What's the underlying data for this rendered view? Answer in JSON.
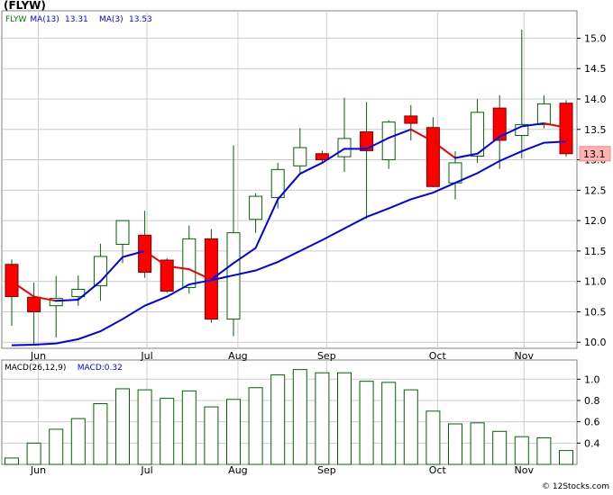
{
  "chart_data": [
    {
      "type": "candlestick",
      "title": "(FLYW)",
      "legend": [
        {
          "label": "FLYW",
          "color": "#008000"
        },
        {
          "label": "MA(13)",
          "value": "13.31",
          "color": "#0000ff"
        },
        {
          "label": "MA(3)",
          "value": "13.53",
          "color": "#0000ff"
        }
      ],
      "last_price_label": "13.1",
      "ylim": [
        9.9,
        15.45
      ],
      "yticks": [
        10.0,
        10.5,
        11.0,
        11.5,
        12.0,
        12.5,
        13.0,
        13.5,
        14.0,
        14.5,
        15.0
      ],
      "ytick_labels": [
        "10.0",
        "10.5",
        "11.0",
        "11.5",
        "12.0",
        "12.5",
        "13.0",
        "13.5",
        "14.0",
        "14.5",
        "15.0"
      ],
      "month_labels": [
        {
          "label": "Jun",
          "week_index": 1.2
        },
        {
          "label": "Jul",
          "week_index": 6.1
        },
        {
          "label": "Aug",
          "week_index": 10.2
        },
        {
          "label": "Sep",
          "week_index": 14.2
        },
        {
          "label": "Oct",
          "week_index": 19.2
        },
        {
          "label": "Nov",
          "week_index": 23.1
        }
      ],
      "candles": [
        {
          "open": 11.28,
          "high": 11.36,
          "low": 10.27,
          "close": 10.75
        },
        {
          "open": 10.74,
          "high": 10.98,
          "low": 9.95,
          "close": 10.5
        },
        {
          "open": 10.6,
          "high": 11.09,
          "low": 10.08,
          "close": 10.72
        },
        {
          "open": 10.75,
          "high": 11.1,
          "low": 10.6,
          "close": 10.87
        },
        {
          "open": 10.93,
          "high": 11.62,
          "low": 10.68,
          "close": 11.41
        },
        {
          "open": 11.61,
          "high": 11.96,
          "low": 11.3,
          "close": 12.0
        },
        {
          "open": 11.76,
          "high": 12.16,
          "low": 11.06,
          "close": 11.15
        },
        {
          "open": 11.35,
          "high": 11.38,
          "low": 10.81,
          "close": 10.84
        },
        {
          "open": 10.9,
          "high": 11.92,
          "low": 10.8,
          "close": 11.7
        },
        {
          "open": 11.7,
          "high": 11.86,
          "low": 10.32,
          "close": 10.38
        },
        {
          "open": 10.38,
          "high": 13.24,
          "low": 10.1,
          "close": 11.8
        },
        {
          "open": 12.02,
          "high": 12.45,
          "low": 11.8,
          "close": 12.4
        },
        {
          "open": 12.38,
          "high": 12.95,
          "low": 12.2,
          "close": 12.84
        },
        {
          "open": 12.9,
          "high": 13.52,
          "low": 12.76,
          "close": 13.2
        },
        {
          "open": 13.1,
          "high": 13.15,
          "low": 12.95,
          "close": 13.0
        },
        {
          "open": 13.05,
          "high": 14.02,
          "low": 12.8,
          "close": 13.35
        },
        {
          "open": 13.46,
          "high": 13.95,
          "low": 12.03,
          "close": 13.15
        },
        {
          "open": 13.0,
          "high": 13.65,
          "low": 12.85,
          "close": 13.62
        },
        {
          "open": 13.72,
          "high": 13.9,
          "low": 13.32,
          "close": 13.6
        },
        {
          "open": 13.53,
          "high": 13.7,
          "low": 12.55,
          "close": 12.56
        },
        {
          "open": 12.62,
          "high": 13.14,
          "low": 12.35,
          "close": 12.95
        },
        {
          "open": 13.06,
          "high": 14.0,
          "low": 12.95,
          "close": 13.78
        },
        {
          "open": 13.85,
          "high": 14.06,
          "low": 12.85,
          "close": 13.32
        },
        {
          "open": 13.4,
          "high": 15.14,
          "low": 13.02,
          "close": 13.58
        },
        {
          "open": 13.58,
          "high": 14.06,
          "low": 13.52,
          "close": 13.92
        },
        {
          "open": 13.93,
          "high": 13.98,
          "low": 13.05,
          "close": 13.1
        }
      ],
      "ma13": [
        9.95,
        9.96,
        9.98,
        10.05,
        10.18,
        10.38,
        10.6,
        10.75,
        10.95,
        11.02,
        11.1,
        11.18,
        11.32,
        11.5,
        11.68,
        11.87,
        12.06,
        12.2,
        12.35,
        12.46,
        12.62,
        12.78,
        12.98,
        13.14,
        13.28,
        13.3
      ],
      "ma3": [
        11.0,
        10.75,
        10.68,
        10.7,
        11.0,
        11.4,
        11.5,
        11.25,
        11.2,
        11.03,
        11.3,
        11.55,
        12.35,
        12.77,
        12.95,
        13.18,
        13.18,
        13.36,
        13.5,
        13.3,
        13.03,
        13.1,
        13.38,
        13.55,
        13.6,
        13.53
      ]
    },
    {
      "type": "bar",
      "title": "MACD(26,12,9)",
      "legend": [
        {
          "label": "MACD(26,12,9)",
          "color": "#000000"
        },
        {
          "label": "MACD:0.32",
          "color": "#0000ff"
        }
      ],
      "ylim": [
        0.2,
        1.18
      ],
      "yticks": [
        0.4,
        0.6,
        0.8,
        1.0
      ],
      "ytick_labels": [
        "0.4",
        "0.6",
        "0.8",
        "1.0"
      ],
      "values": [
        0.26,
        0.4,
        0.53,
        0.63,
        0.77,
        0.91,
        0.9,
        0.82,
        0.89,
        0.74,
        0.81,
        0.92,
        1.04,
        1.09,
        1.06,
        1.06,
        0.98,
        0.97,
        0.9,
        0.7,
        0.58,
        0.59,
        0.51,
        0.46,
        0.45,
        0.33
      ]
    }
  ],
  "credit": "© 12Stocks.com"
}
